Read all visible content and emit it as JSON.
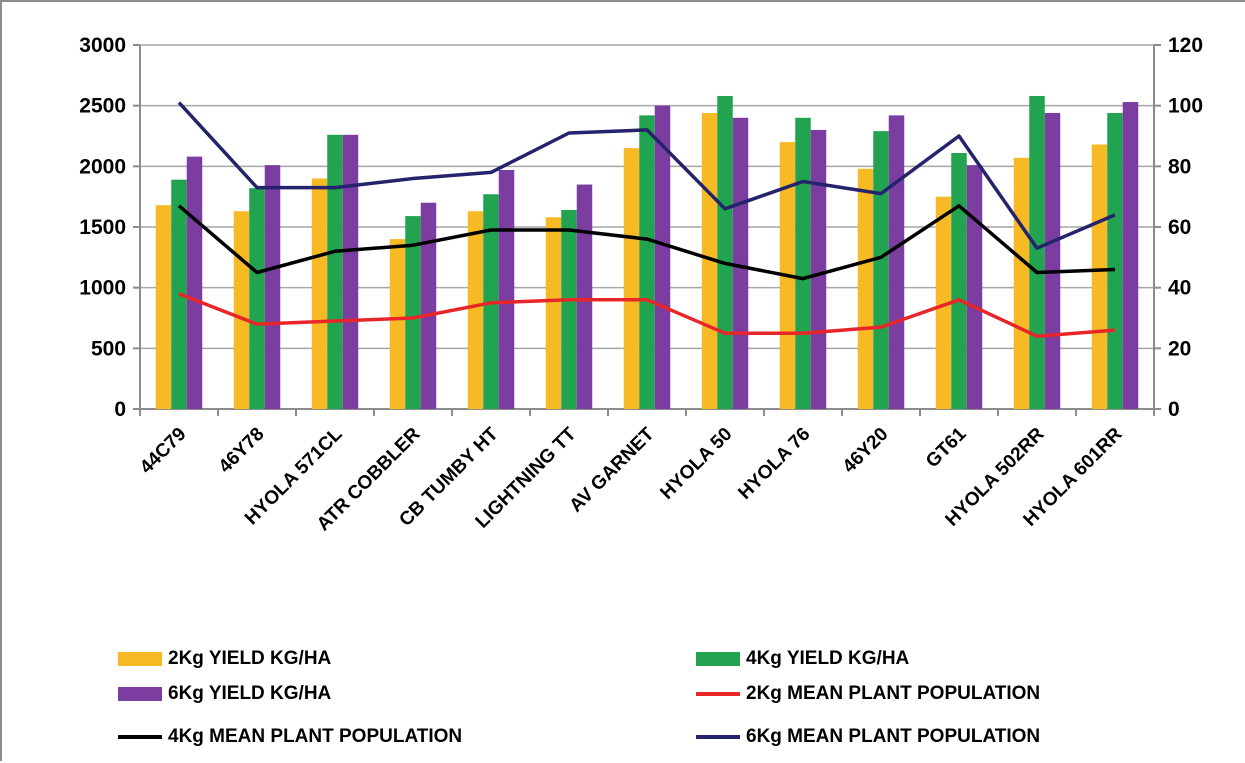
{
  "chart_data": {
    "type": "bar",
    "categories": [
      "44C79",
      "46Y78",
      "HYOLA 571CL",
      "ATR COBBLER",
      "CB TUMBY HT",
      "LIGHTNING TT",
      "AV GARNET",
      "HYOLA 50",
      "HYOLA 76",
      "46Y20",
      "GT61",
      "HYOLA 502RR",
      "HYOLA 601RR"
    ],
    "series": [
      {
        "name": "2Kg YIELD KG/HA",
        "type": "bar",
        "axis": "left",
        "color": "#f7b924",
        "values": [
          1680,
          1630,
          1900,
          1400,
          1630,
          1580,
          2150,
          2440,
          2200,
          1980,
          1750,
          2070,
          2180
        ]
      },
      {
        "name": "4Kg YIELD KG/HA",
        "type": "bar",
        "axis": "left",
        "color": "#22a34f",
        "values": [
          1890,
          1820,
          2260,
          1590,
          1770,
          1640,
          2420,
          2580,
          2400,
          2290,
          2110,
          2580,
          2440
        ]
      },
      {
        "name": "6Kg YIELD KG/HA",
        "type": "bar",
        "axis": "left",
        "color": "#7b3ea0",
        "values": [
          2080,
          2010,
          2260,
          1700,
          1970,
          1850,
          2500,
          2400,
          2300,
          2420,
          2010,
          2440,
          2530
        ]
      },
      {
        "name": "2Kg MEAN PLANT POPULATION",
        "type": "line",
        "axis": "right",
        "color": "#e8262a",
        "values": [
          38,
          28,
          29,
          30,
          35,
          36,
          36,
          25,
          25,
          27,
          36,
          24,
          26
        ]
      },
      {
        "name": "4Kg MEAN PLANT POPULATION",
        "type": "line",
        "axis": "right",
        "color": "#000000",
        "values": [
          67,
          45,
          52,
          54,
          59,
          59,
          56,
          48,
          43,
          50,
          67,
          45,
          46
        ]
      },
      {
        "name": "6Kg MEAN PLANT POPULATION",
        "type": "line",
        "axis": "right",
        "color": "#24236b",
        "values": [
          101,
          73,
          73,
          76,
          78,
          91,
          92,
          66,
          75,
          71,
          90,
          53,
          64
        ]
      }
    ],
    "y_left": {
      "min": 0,
      "max": 3000,
      "ticks": [
        "0",
        "500",
        "1000",
        "1500",
        "2000",
        "2500",
        "3000"
      ]
    },
    "y_right": {
      "min": 0,
      "max": 120,
      "ticks": [
        "0",
        "20",
        "40",
        "60",
        "80",
        "100",
        "120"
      ]
    },
    "grid": true,
    "grid_color": "#a6a6a6",
    "legend_position": "bottom",
    "title": "",
    "xlabel": "",
    "ylabel": ""
  },
  "legend": [
    {
      "label": "2Kg YIELD KG/HA",
      "kind": "bar",
      "color": "#f7b924"
    },
    {
      "label": "4Kg YIELD KG/HA",
      "kind": "bar",
      "color": "#22a34f"
    },
    {
      "label": "6Kg YIELD KG/HA",
      "kind": "bar",
      "color": "#7b3ea0"
    },
    {
      "label": "2Kg MEAN PLANT POPULATION",
      "kind": "line",
      "color": "#e8262a"
    },
    {
      "label": "4Kg MEAN PLANT POPULATION",
      "kind": "line",
      "color": "#000000"
    },
    {
      "label": "6Kg MEAN PLANT POPULATION",
      "kind": "line",
      "color": "#24236b"
    }
  ]
}
